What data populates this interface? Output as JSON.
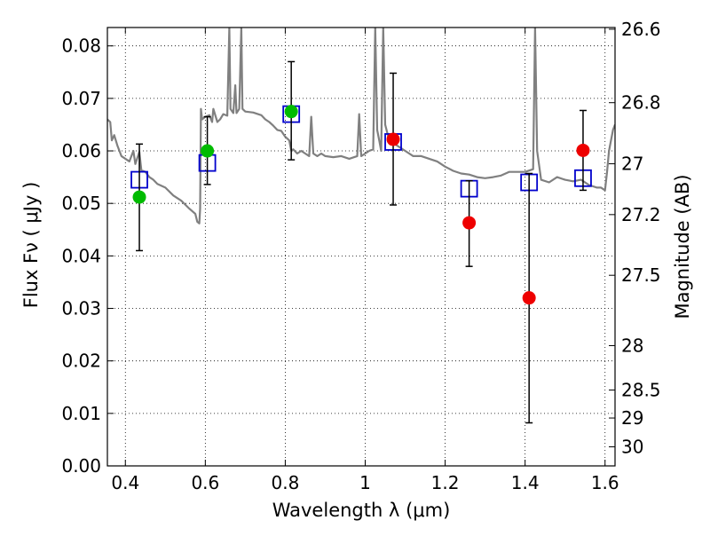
{
  "chart_data": {
    "type": "scatter",
    "title": "",
    "xlabel": "Wavelength  λ (μm)",
    "ylabel": "Flux  Fν  ( μJy )",
    "ylabel_right": "Magnitude (AB)",
    "xlim": [
      0.355,
      1.625
    ],
    "ylim": [
      0.0,
      0.0835
    ],
    "grid": true,
    "x_ticks": [
      {
        "value": 0.4,
        "label": "0.4"
      },
      {
        "value": 0.6,
        "label": "0.6"
      },
      {
        "value": 0.8,
        "label": "0.8"
      },
      {
        "value": 1.0,
        "label": "1"
      },
      {
        "value": 1.2,
        "label": "1.2"
      },
      {
        "value": 1.4,
        "label": "1.4"
      },
      {
        "value": 1.6,
        "label": "1.6"
      }
    ],
    "y_ticks": [
      {
        "value": 0.0,
        "label": "0.00"
      },
      {
        "value": 0.01,
        "label": "0.01"
      },
      {
        "value": 0.02,
        "label": "0.02"
      },
      {
        "value": 0.03,
        "label": "0.03"
      },
      {
        "value": 0.04,
        "label": "0.04"
      },
      {
        "value": 0.05,
        "label": "0.05"
      },
      {
        "value": 0.06,
        "label": "0.06"
      },
      {
        "value": 0.07,
        "label": "0.07"
      },
      {
        "value": 0.08,
        "label": "0.08"
      }
    ],
    "right_ticks": [
      {
        "value": 26.6,
        "label": "26.6"
      },
      {
        "value": 26.8,
        "label": "26.8"
      },
      {
        "value": 27.0,
        "label": "27"
      },
      {
        "value": 27.2,
        "label": "27.2"
      },
      {
        "value": 27.5,
        "label": "27.5"
      },
      {
        "value": 28.0,
        "label": "28"
      },
      {
        "value": 28.5,
        "label": "28.5"
      },
      {
        "value": 29.0,
        "label": "29"
      },
      {
        "value": 30.0,
        "label": "30"
      }
    ],
    "series": [
      {
        "role": "model-spectrum",
        "style": "line",
        "color": "#808080",
        "points": [
          [
            0.355,
            0.066
          ],
          [
            0.362,
            0.0655
          ],
          [
            0.366,
            0.062
          ],
          [
            0.372,
            0.063
          ],
          [
            0.38,
            0.061
          ],
          [
            0.39,
            0.059
          ],
          [
            0.4,
            0.0585
          ],
          [
            0.41,
            0.058
          ],
          [
            0.42,
            0.06
          ],
          [
            0.425,
            0.0575
          ],
          [
            0.435,
            0.0598
          ],
          [
            0.44,
            0.0563
          ],
          [
            0.45,
            0.056
          ],
          [
            0.46,
            0.055
          ],
          [
            0.47,
            0.0545
          ],
          [
            0.48,
            0.0537
          ],
          [
            0.5,
            0.053
          ],
          [
            0.52,
            0.0515
          ],
          [
            0.54,
            0.0505
          ],
          [
            0.56,
            0.049
          ],
          [
            0.575,
            0.048
          ],
          [
            0.58,
            0.0465
          ],
          [
            0.585,
            0.0462
          ],
          [
            0.587,
            0.049
          ],
          [
            0.589,
            0.068
          ],
          [
            0.592,
            0.066
          ],
          [
            0.6,
            0.0665
          ],
          [
            0.61,
            0.0668
          ],
          [
            0.617,
            0.0655
          ],
          [
            0.62,
            0.068
          ],
          [
            0.63,
            0.0655
          ],
          [
            0.637,
            0.066
          ],
          [
            0.645,
            0.067
          ],
          [
            0.655,
            0.0667
          ],
          [
            0.66,
            0.0835
          ],
          [
            0.663,
            0.068
          ],
          [
            0.67,
            0.0672
          ],
          [
            0.675,
            0.0725
          ],
          [
            0.678,
            0.0672
          ],
          [
            0.685,
            0.068
          ],
          [
            0.69,
            0.0835
          ],
          [
            0.693,
            0.068
          ],
          [
            0.7,
            0.0675
          ],
          [
            0.72,
            0.0673
          ],
          [
            0.74,
            0.0668
          ],
          [
            0.75,
            0.066
          ],
          [
            0.76,
            0.0655
          ],
          [
            0.77,
            0.0648
          ],
          [
            0.78,
            0.064
          ],
          [
            0.79,
            0.0638
          ],
          [
            0.8,
            0.0627
          ],
          [
            0.81,
            0.062
          ],
          [
            0.815,
            0.06
          ],
          [
            0.82,
            0.0603
          ],
          [
            0.83,
            0.0595
          ],
          [
            0.84,
            0.06
          ],
          [
            0.85,
            0.0595
          ],
          [
            0.86,
            0.059
          ],
          [
            0.865,
            0.0665
          ],
          [
            0.87,
            0.0595
          ],
          [
            0.88,
            0.059
          ],
          [
            0.89,
            0.0595
          ],
          [
            0.9,
            0.059
          ],
          [
            0.92,
            0.0588
          ],
          [
            0.94,
            0.059
          ],
          [
            0.96,
            0.0585
          ],
          [
            0.98,
            0.059
          ],
          [
            0.985,
            0.067
          ],
          [
            0.99,
            0.059
          ],
          [
            1.0,
            0.0595
          ],
          [
            1.01,
            0.06
          ],
          [
            1.02,
            0.0603
          ],
          [
            1.025,
            0.0835
          ],
          [
            1.03,
            0.064
          ],
          [
            1.035,
            0.062
          ],
          [
            1.04,
            0.06
          ],
          [
            1.045,
            0.0835
          ],
          [
            1.05,
            0.065
          ],
          [
            1.06,
            0.062
          ],
          [
            1.07,
            0.0615
          ],
          [
            1.08,
            0.061
          ],
          [
            1.1,
            0.06
          ],
          [
            1.12,
            0.059
          ],
          [
            1.14,
            0.059
          ],
          [
            1.16,
            0.0585
          ],
          [
            1.18,
            0.058
          ],
          [
            1.2,
            0.057
          ],
          [
            1.22,
            0.0562
          ],
          [
            1.24,
            0.0557
          ],
          [
            1.26,
            0.0555
          ],
          [
            1.28,
            0.055
          ],
          [
            1.3,
            0.0548
          ],
          [
            1.32,
            0.055
          ],
          [
            1.34,
            0.0553
          ],
          [
            1.36,
            0.056
          ],
          [
            1.38,
            0.056
          ],
          [
            1.4,
            0.056
          ],
          [
            1.42,
            0.0565
          ],
          [
            1.425,
            0.0835
          ],
          [
            1.43,
            0.06
          ],
          [
            1.44,
            0.0545
          ],
          [
            1.46,
            0.054
          ],
          [
            1.48,
            0.055
          ],
          [
            1.5,
            0.0545
          ],
          [
            1.52,
            0.0542
          ],
          [
            1.54,
            0.0545
          ],
          [
            1.56,
            0.0535
          ],
          [
            1.58,
            0.053
          ],
          [
            1.59,
            0.053
          ],
          [
            1.6,
            0.0525
          ],
          [
            1.605,
            0.056
          ],
          [
            1.61,
            0.06
          ],
          [
            1.62,
            0.064
          ],
          [
            1.625,
            0.065
          ]
        ]
      },
      {
        "role": "model-photometry",
        "style": "open-square",
        "color": "#0000cc",
        "points": [
          [
            0.435,
            0.0545
          ],
          [
            0.605,
            0.0577
          ],
          [
            0.815,
            0.067
          ],
          [
            1.07,
            0.0617
          ],
          [
            1.26,
            0.0528
          ],
          [
            1.41,
            0.054
          ],
          [
            1.545,
            0.0548
          ]
        ]
      },
      {
        "role": "observed-green",
        "style": "filled-circle",
        "color": "#00bb00",
        "points": [
          {
            "x": 0.435,
            "y": 0.0512,
            "err_low": 0.041,
            "err_high": 0.0613
          },
          {
            "x": 0.605,
            "y": 0.06,
            "err_low": 0.0536,
            "err_high": 0.0665
          },
          {
            "x": 0.815,
            "y": 0.0675,
            "err_low": 0.0583,
            "err_high": 0.077
          }
        ]
      },
      {
        "role": "observed-red",
        "style": "filled-circle",
        "color": "#ee0000",
        "points": [
          {
            "x": 1.07,
            "y": 0.0622,
            "err_low": 0.0497,
            "err_high": 0.0748
          },
          {
            "x": 1.26,
            "y": 0.0463,
            "err_low": 0.038,
            "err_high": 0.0543
          },
          {
            "x": 1.41,
            "y": 0.032,
            "err_low": 0.0082,
            "err_high": 0.0557
          },
          {
            "x": 1.545,
            "y": 0.0601,
            "err_low": 0.0525,
            "err_high": 0.0677
          }
        ]
      }
    ]
  }
}
